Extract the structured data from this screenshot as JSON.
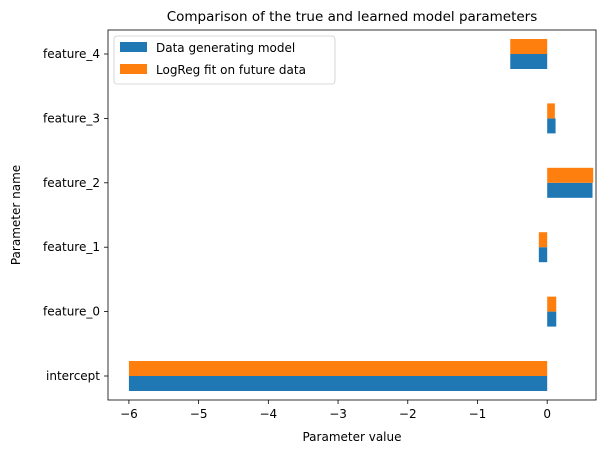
{
  "chart_data": {
    "type": "bar",
    "orientation": "horizontal",
    "title": "Comparison of the true and learned model parameters",
    "xlabel": "Parameter value",
    "ylabel": "Parameter name",
    "categories": [
      "intercept",
      "feature_0",
      "feature_1",
      "feature_2",
      "feature_3",
      "feature_4"
    ],
    "series": [
      {
        "name": "Data generating model",
        "color": "#1f77b4",
        "values": [
          -6.0,
          0.13,
          -0.12,
          0.65,
          0.12,
          -0.53
        ]
      },
      {
        "name": "LogReg fit on future data",
        "color": "#ff7f0e",
        "values": [
          -6.0,
          0.13,
          -0.12,
          0.66,
          0.11,
          -0.53
        ]
      }
    ],
    "xlim": [
      -6.3,
      0.7
    ],
    "xticks": [
      -6,
      -5,
      -4,
      -3,
      -2,
      -1,
      0
    ],
    "xtick_labels": [
      "−6",
      "−5",
      "−4",
      "−3",
      "−2",
      "−1",
      "0"
    ],
    "grid": false,
    "legend": "top-left"
  }
}
